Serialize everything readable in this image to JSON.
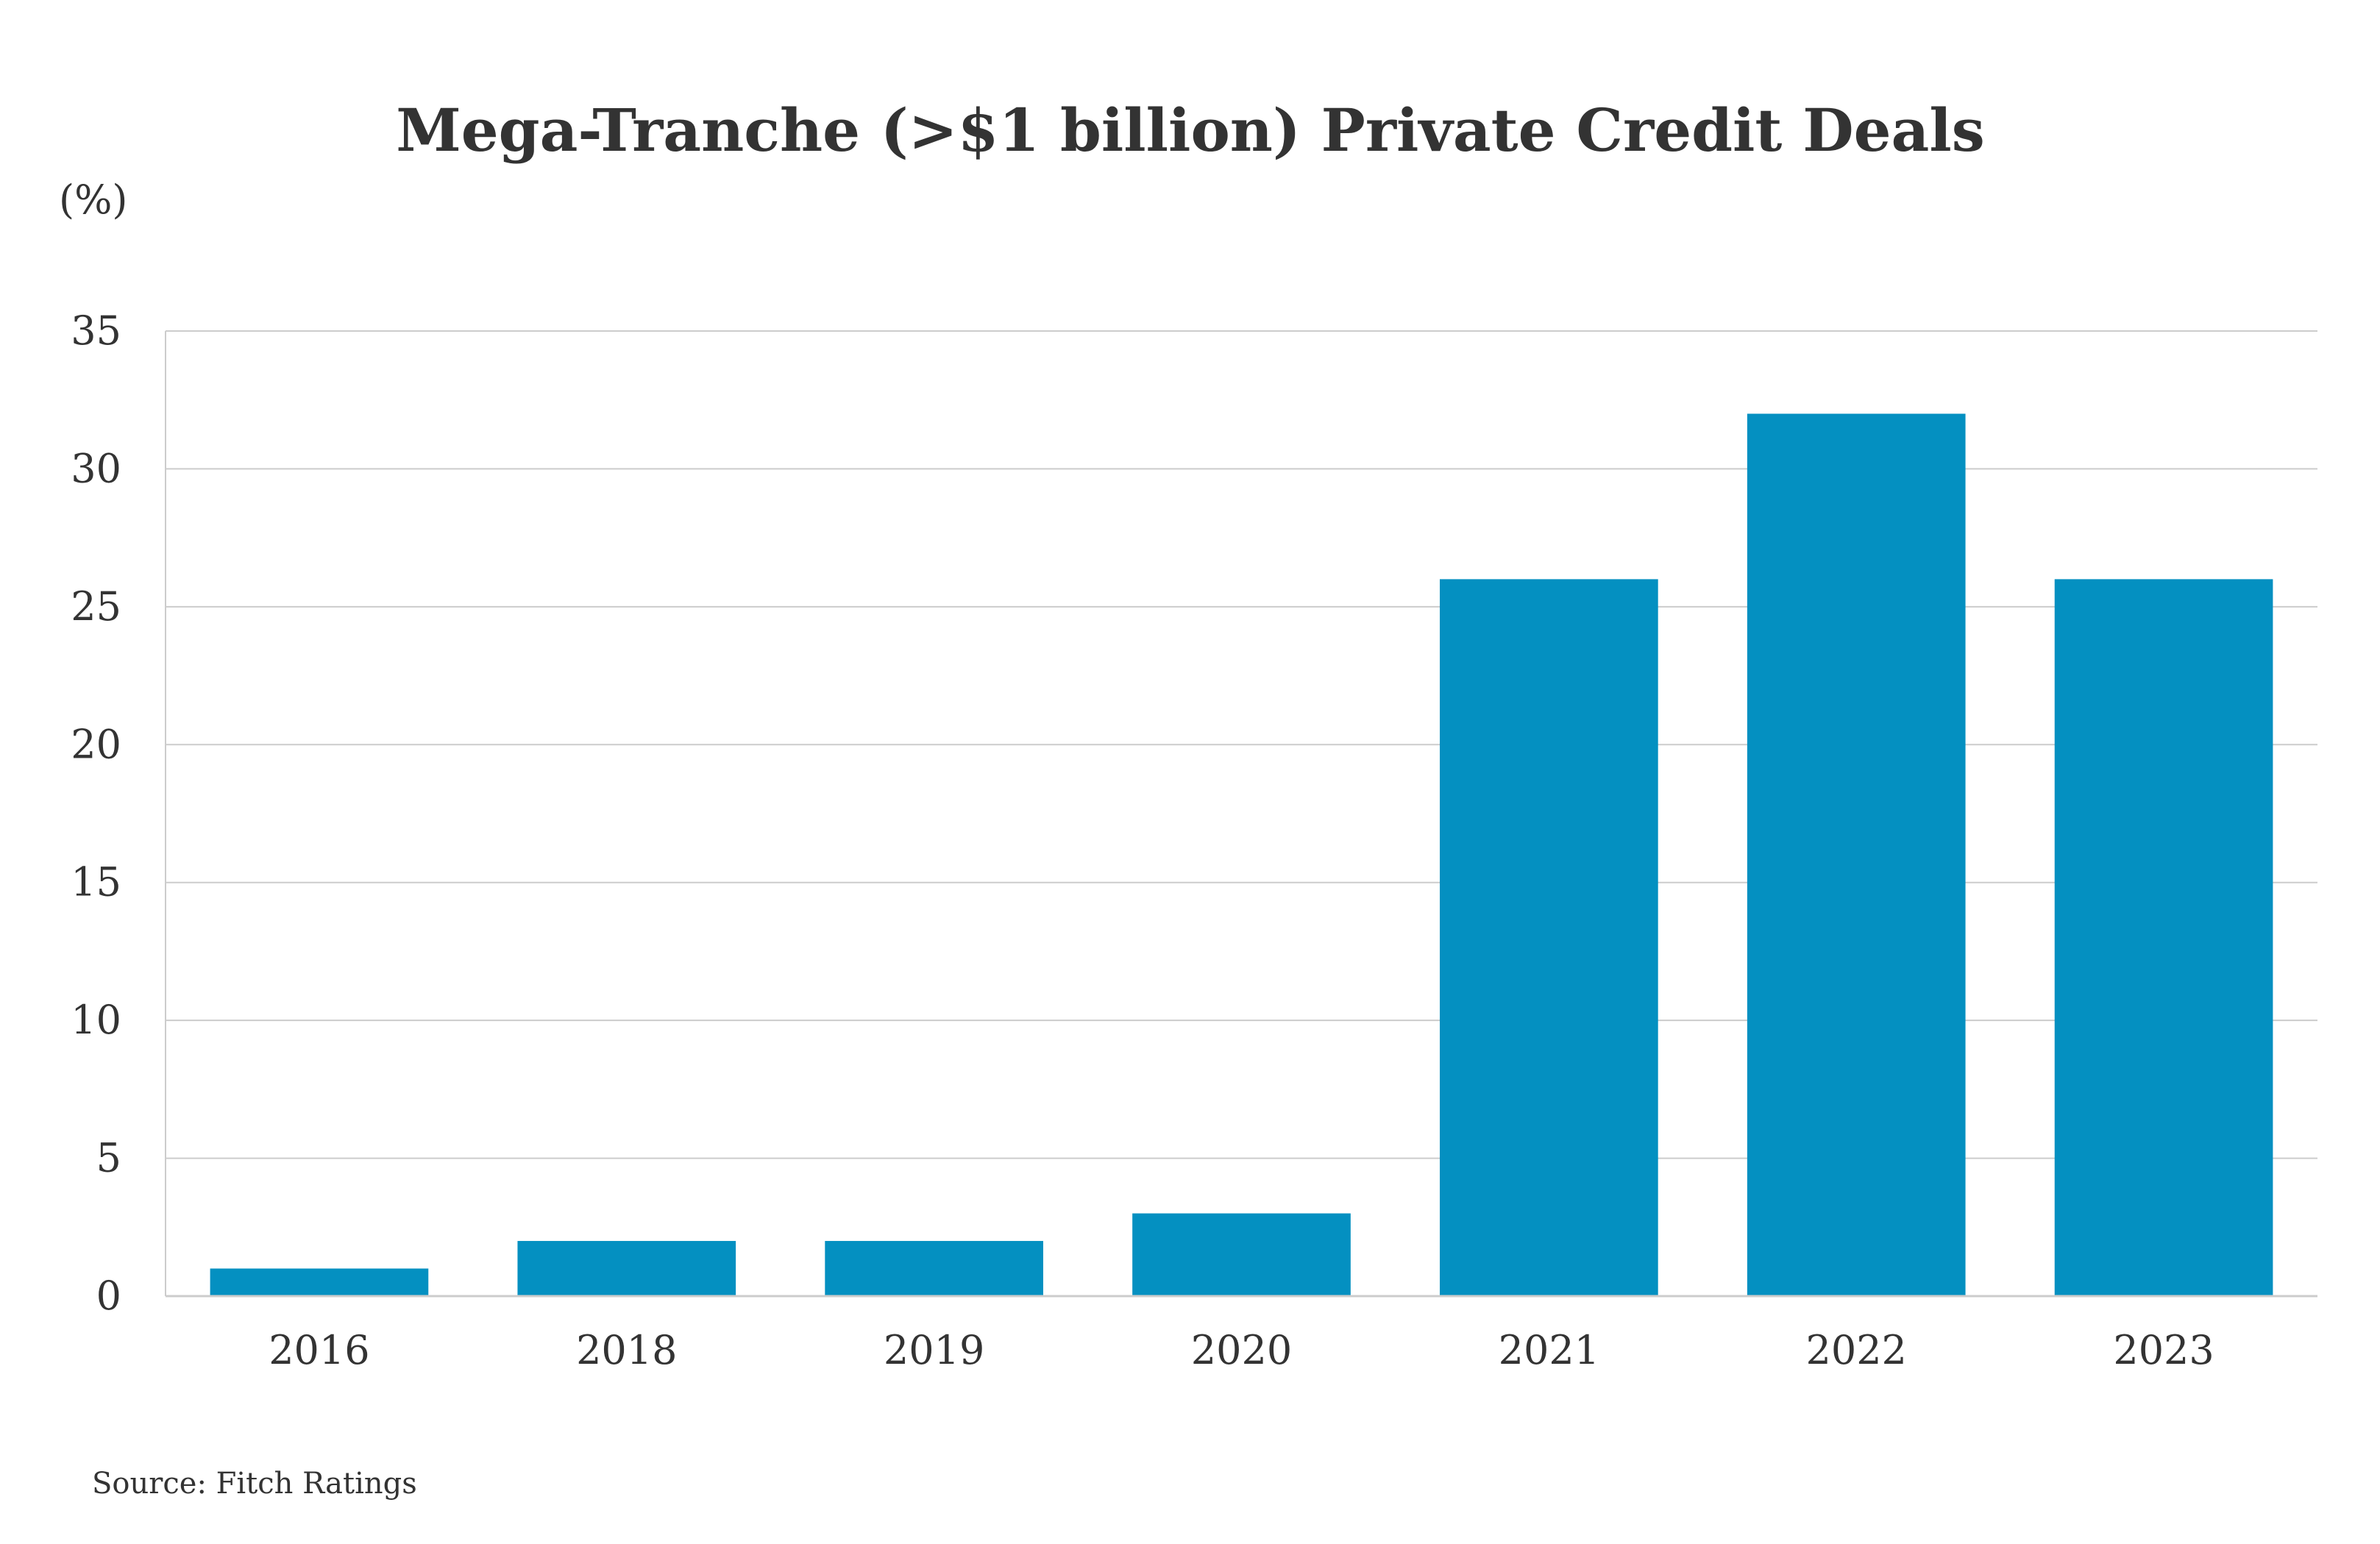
{
  "chart_data": {
    "type": "bar",
    "title": "Mega-Tranche (>$1 billion) Private Credit Deals",
    "unit_label": "(%)",
    "xlabel": "",
    "ylabel": "",
    "categories": [
      "2016",
      "2018",
      "2019",
      "2020",
      "2021",
      "2022",
      "2023"
    ],
    "values": [
      1,
      2,
      2,
      3,
      26,
      32,
      26
    ],
    "ylim": [
      0,
      35
    ],
    "y_ticks": [
      "0",
      "5",
      "10",
      "15",
      "20",
      "25",
      "30",
      "35"
    ],
    "grid": true,
    "legend": "none",
    "bar_color": "#0490c1",
    "grid_color": "#cccccc",
    "source": "Source: Fitch Ratings"
  }
}
